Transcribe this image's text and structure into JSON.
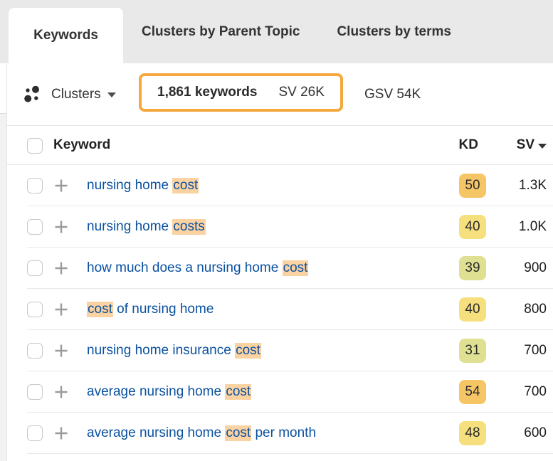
{
  "tabs": [
    {
      "label": "Keywords",
      "active": true
    },
    {
      "label": "Clusters by Parent Topic",
      "active": false
    },
    {
      "label": "Clusters by terms",
      "active": false
    }
  ],
  "toolbar": {
    "clusters_label": "Clusters",
    "keywords_count": "1,861 keywords",
    "sv_total": "SV 26K",
    "gsv_total": "GSV 54K"
  },
  "table": {
    "columns": {
      "keyword": "Keyword",
      "kd": "KD",
      "sv": "SV"
    },
    "sorted_by": "SV",
    "rows": [
      {
        "parts": [
          {
            "text": "nursing home ",
            "highlight": false
          },
          {
            "text": "cost",
            "highlight": true
          }
        ],
        "kd": "50",
        "kd_color": "#f6c666",
        "sv": "1.3K"
      },
      {
        "parts": [
          {
            "text": "nursing home ",
            "highlight": false
          },
          {
            "text": "costs",
            "highlight": true
          }
        ],
        "kd": "40",
        "kd_color": "#f6df7d",
        "sv": "1.0K"
      },
      {
        "parts": [
          {
            "text": "how much does a nursing home ",
            "highlight": false
          },
          {
            "text": "cost",
            "highlight": true
          }
        ],
        "kd": "39",
        "kd_color": "#dfe092",
        "sv": "900"
      },
      {
        "parts": [
          {
            "text": "cost",
            "highlight": true
          },
          {
            "text": " of nursing home",
            "highlight": false
          }
        ],
        "kd": "40",
        "kd_color": "#f6df7d",
        "sv": "800"
      },
      {
        "parts": [
          {
            "text": "nursing home insurance ",
            "highlight": false
          },
          {
            "text": "cost",
            "highlight": true
          }
        ],
        "kd": "31",
        "kd_color": "#dfe092",
        "sv": "700"
      },
      {
        "parts": [
          {
            "text": "average nursing home ",
            "highlight": false
          },
          {
            "text": "cost",
            "highlight": true
          }
        ],
        "kd": "54",
        "kd_color": "#f6c666",
        "sv": "700"
      },
      {
        "parts": [
          {
            "text": "average nursing home ",
            "highlight": false
          },
          {
            "text": "cost",
            "highlight": true
          },
          {
            "text": " per month",
            "highlight": false
          }
        ],
        "kd": "48",
        "kd_color": "#f6df7d",
        "sv": "600"
      }
    ]
  },
  "icons": {
    "clusters": "clusters-dots-icon",
    "dropdown_caret": "caret-down",
    "sort_caret": "caret-down",
    "plus": "plus"
  },
  "colors": {
    "tabbar_bg": "#e9e9e9",
    "active_tab_bg": "#ffffff",
    "highlight_bg": "#fbd2a2",
    "count_box_border": "#f5a83e",
    "link_blue": "#0a51a0",
    "kd_orange": "#f6c666",
    "kd_yellow": "#f6df7d",
    "kd_green": "#dfe092"
  }
}
